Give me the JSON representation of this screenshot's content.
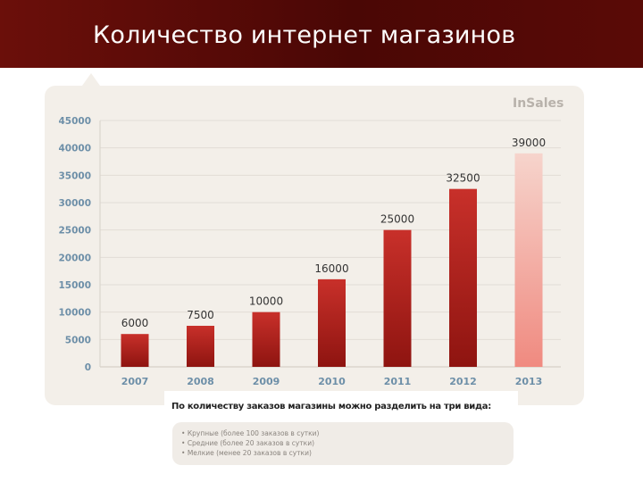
{
  "header": {
    "title": "Количество интернет магазинов"
  },
  "brand": "InSales",
  "footnote": {
    "text": "По количеству заказов магазины можно разделить на три вида:",
    "items": [
      "Крупные (более 100 заказов в сутки)",
      "Средние (более 20 заказов в сутки)",
      "Мелкие (менее 20 заказов в сутки)"
    ]
  },
  "colors": {
    "header_bg": "#5a0a06",
    "bar_top": "#c8302a",
    "bar_bottom": "#8e1410",
    "highlight_bar_top": "#f6d4cc",
    "highlight_bar_bottom": "#f08a80",
    "panel_bg": "#f3efe9"
  },
  "chart_data": {
    "type": "bar",
    "categories": [
      "2007",
      "2008",
      "2009",
      "2010",
      "2011",
      "2012",
      "2013"
    ],
    "values": [
      6000,
      7500,
      10000,
      16000,
      25000,
      32500,
      39000
    ],
    "data_labels": [
      "6000",
      "7500",
      "10000",
      "16000",
      "25000",
      "32500",
      "39000"
    ],
    "highlight_index": 6,
    "yticks": [
      "0",
      "5000",
      "10000",
      "15000",
      "20000",
      "25000",
      "30000",
      "35000",
      "40000",
      "45000"
    ],
    "ylim": [
      0,
      45000
    ],
    "grid": true,
    "title": "",
    "xlabel": "",
    "ylabel": ""
  }
}
